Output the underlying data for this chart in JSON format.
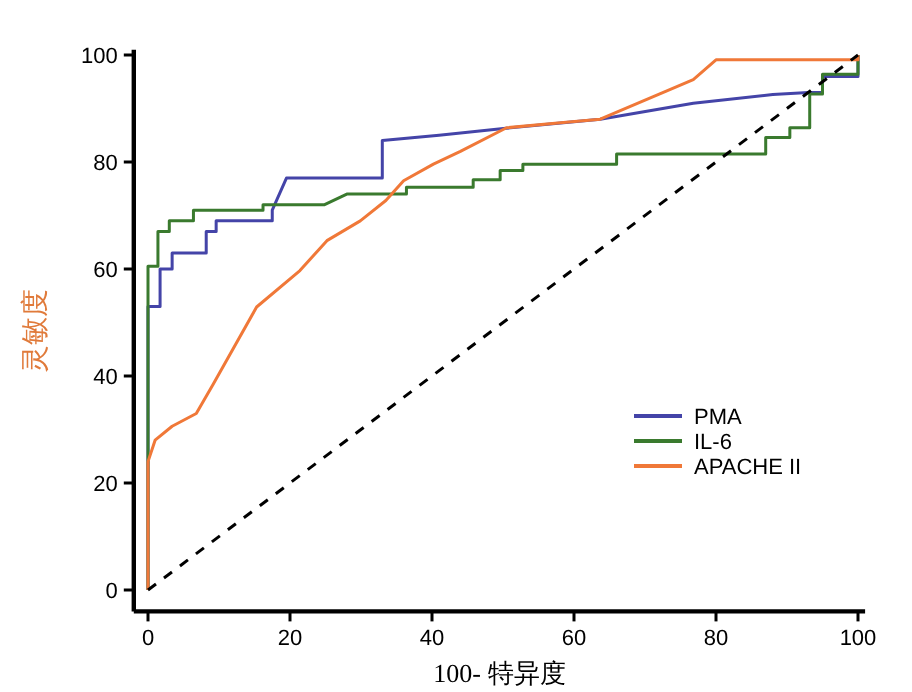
{
  "chart_data": {
    "type": "line",
    "xlabel": "100- 特异度",
    "ylabel": "灵敏度",
    "xlim": [
      -2,
      101
    ],
    "ylim": [
      -4,
      101
    ],
    "xticks": [
      0,
      20,
      40,
      60,
      80,
      100
    ],
    "yticks": [
      0,
      20,
      40,
      60,
      80,
      100
    ],
    "grid": false,
    "legend": "bottom right",
    "line_style": "solid",
    "marker": "none",
    "series": [
      {
        "name": "PMA",
        "color": "#4444a8",
        "x": [
          0,
          0,
          1.7,
          1.7,
          3.4,
          3.4,
          8.2,
          8.2,
          9.6,
          9.6,
          17.5,
          17.5,
          19.5,
          33,
          33,
          41,
          50.4,
          63.7,
          76.8,
          88,
          93,
          95,
          95,
          100,
          100
        ],
        "values": [
          0,
          53,
          53,
          60,
          60,
          63,
          63,
          67,
          67,
          69,
          69,
          71,
          77,
          77,
          84,
          85,
          86.3,
          88,
          91,
          92.6,
          93,
          93,
          96,
          96,
          100
        ]
      },
      {
        "name": "IL-6",
        "color": "#3a7a2e",
        "x": [
          0,
          0,
          1.4,
          1.4,
          3,
          3,
          6.4,
          6.4,
          16.2,
          16.2,
          24.8,
          28,
          36.4,
          36.4,
          45.8,
          45.8,
          49.6,
          49.6,
          52.8,
          52.8,
          66,
          66,
          87,
          87,
          90.4,
          90.4,
          93.2,
          93.2,
          95,
          95,
          100,
          100
        ],
        "values": [
          0,
          60.5,
          60.5,
          67,
          67,
          69,
          69,
          71,
          71,
          72,
          72,
          74,
          74,
          75.3,
          75.3,
          76.7,
          76.7,
          78.4,
          78.4,
          79.6,
          79.6,
          81.5,
          81.5,
          84.6,
          84.6,
          86.4,
          86.4,
          92.7,
          92.7,
          96.4,
          96.4,
          100
        ]
      },
      {
        "name": "APACHE II",
        "color": "#f07838",
        "x": [
          0,
          0,
          1,
          3.4,
          6.8,
          9.2,
          15.3,
          21.4,
          25.2,
          29.9,
          33.5,
          36,
          40.2,
          44,
          50.5,
          58.5,
          63.7,
          72,
          76.8,
          80,
          100,
          100
        ],
        "values": [
          0,
          24,
          28,
          30.6,
          33,
          38.5,
          52.9,
          59.7,
          65.3,
          69,
          72.8,
          76.5,
          79.6,
          82,
          86.4,
          87.4,
          88,
          92.7,
          95.4,
          99.1,
          99.1,
          100
        ]
      },
      {
        "color": "#000000",
        "line_style": "dashed",
        "x": [
          0,
          100
        ],
        "values": [
          0,
          100
        ]
      }
    ]
  }
}
